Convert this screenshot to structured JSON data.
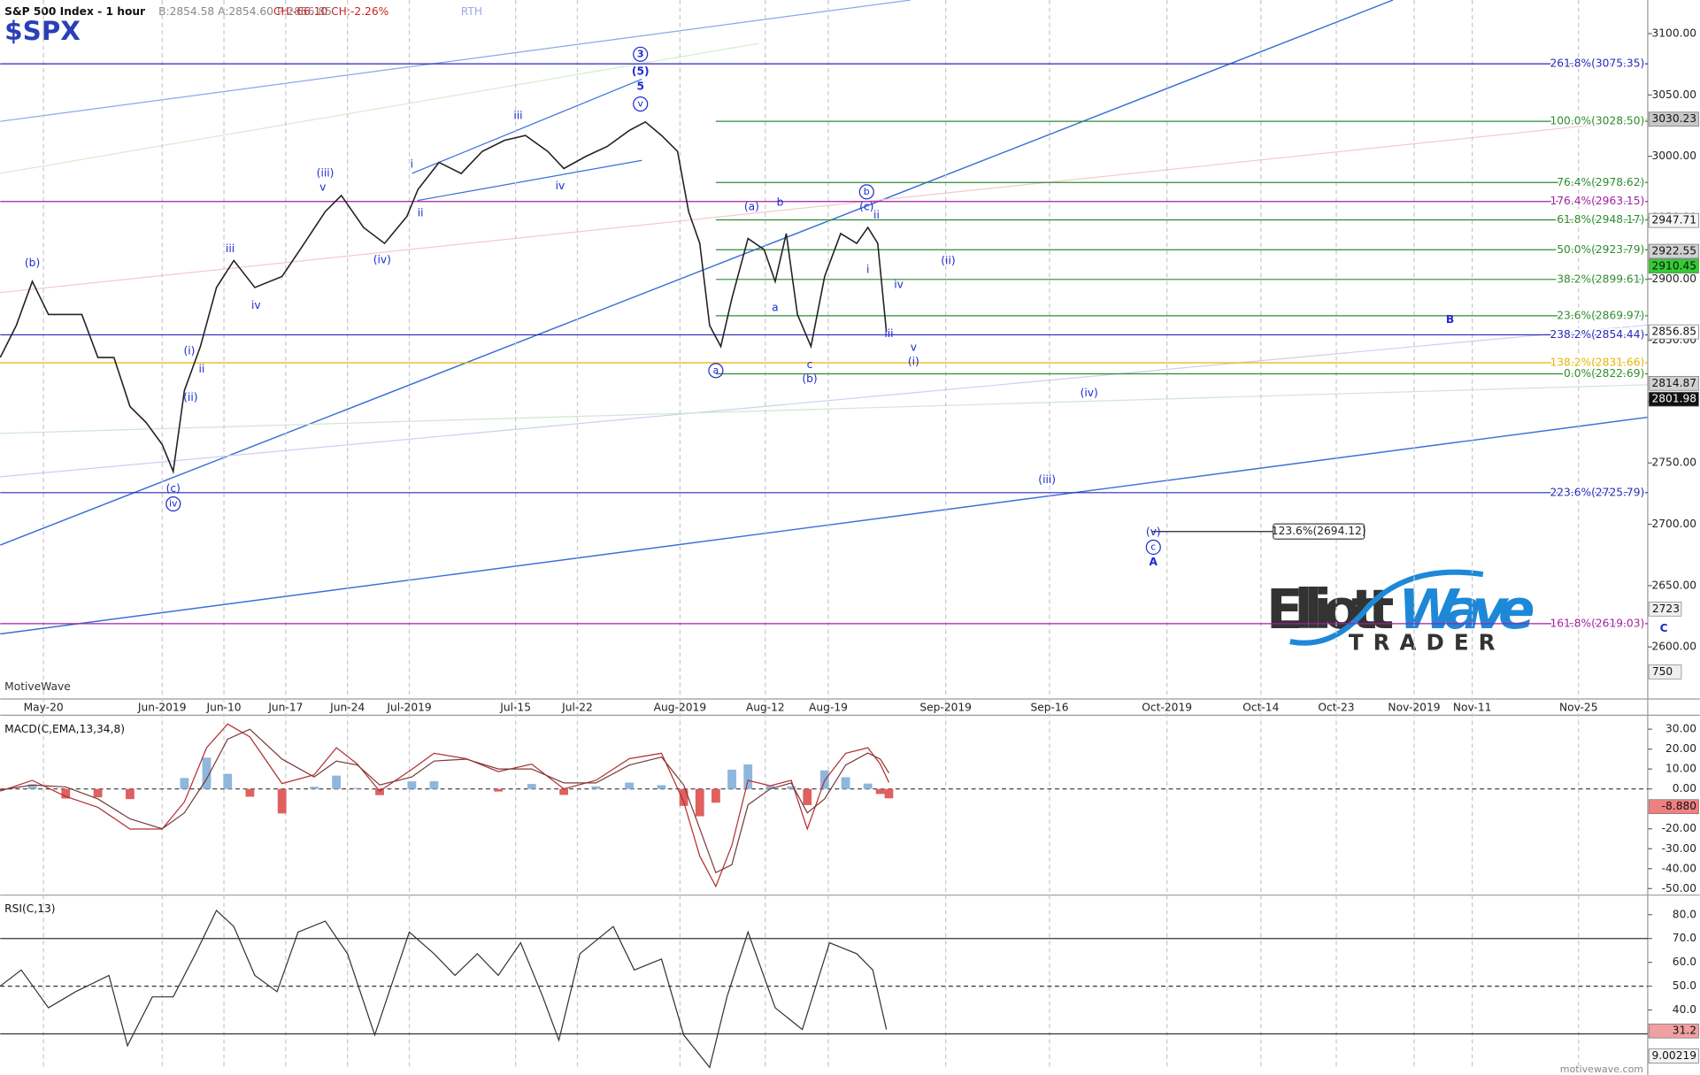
{
  "header": {
    "instrument": "S&P 500 Index - 1 hour",
    "quote": "B:2854.58 A:2854.60 P:2856.85",
    "change": "CH:-66.10 CH:-2.26%",
    "session": "RTH",
    "symbol": "$SPX"
  },
  "logo": {
    "name1": "Elliott",
    "name2": "Wave",
    "tagline": "TRADER"
  },
  "watermark": "MotiveWave",
  "footer": "motivewave.com",
  "footer_tag": "9.00219",
  "chart_data": [
    {
      "type": "line",
      "color": "#222222",
      "x": [
        -3.5,
        -2.2,
        -0.9,
        0.4,
        1.8,
        3.1,
        4.4,
        5.7,
        7.0,
        8.3,
        9.6,
        10.5,
        11.4,
        12.7,
        14.0,
        15.4,
        17.1,
        19.3,
        21.1,
        22.8,
        24.1,
        25.9,
        27.6,
        29.4,
        30.3,
        32.0,
        33.8,
        35.5,
        37.3,
        39.0,
        40.8,
        42.1,
        43.9,
        45.6,
        47.4,
        48.7,
        50.0,
        51.3,
        52.2,
        53.1,
        53.9,
        54.8,
        55.7,
        57.0,
        58.3,
        59.2,
        60.1,
        61.0,
        62.1,
        63.2,
        64.5,
        65.8,
        66.7,
        67.5,
        68.2
      ],
      "values": [
        2836,
        2862,
        2898,
        2871,
        2871,
        2871,
        2836,
        2836,
        2796,
        2783,
        2765,
        2743,
        2809,
        2845,
        2893,
        2915,
        2893,
        2902,
        2929,
        2955,
        2968,
        2942,
        2929,
        2951,
        2973,
        2995,
        2986,
        3004,
        3013,
        3017,
        3004,
        2990,
        3000,
        3008,
        3021,
        3028,
        3017,
        3004,
        2955,
        2929,
        2862,
        2845,
        2884,
        2933,
        2924,
        2898,
        2937,
        2871,
        2845,
        2902,
        2937,
        2929,
        2942,
        2929,
        2857
      ],
      "xlim": [
        -3.5,
        129.8
      ],
      "xticks": [
        {
          "value": 0,
          "label": "May-20"
        },
        {
          "value": 9.6,
          "label": "Jun-2019"
        },
        {
          "value": 14.6,
          "label": "Jun-10"
        },
        {
          "value": 19.6,
          "label": "Jun-17"
        },
        {
          "value": 24.6,
          "label": "Jun-24"
        },
        {
          "value": 29.6,
          "label": "Jul-2019"
        },
        {
          "value": 38.2,
          "label": "Jul-15"
        },
        {
          "value": 43.2,
          "label": "Jul-22"
        },
        {
          "value": 51.5,
          "label": "Aug-2019"
        },
        {
          "value": 58.4,
          "label": "Aug-12"
        },
        {
          "value": 63.5,
          "label": "Aug-19"
        },
        {
          "value": 73,
          "label": "Sep-2019"
        },
        {
          "value": 81.4,
          "label": "Sep-16"
        },
        {
          "value": 90.9,
          "label": "Oct-2019"
        },
        {
          "value": 98.5,
          "label": "Oct-14"
        },
        {
          "value": 104.6,
          "label": "Oct-23"
        },
        {
          "value": 110.9,
          "label": "Nov-2019"
        },
        {
          "value": 115.6,
          "label": "Nov-11"
        },
        {
          "value": 124.2,
          "label": "Nov-25"
        }
      ],
      "ylim": [
        2557.6,
        3127.4
      ],
      "yticks": [
        {
          "value": 2600,
          "label": "2600.00"
        },
        {
          "value": 2650,
          "label": "2650.00"
        },
        {
          "value": 2700,
          "label": "2700.00"
        },
        {
          "value": 2750,
          "label": "2750.00"
        },
        {
          "value": 2800,
          "label": "2800.00"
        },
        {
          "value": 2850,
          "label": "2850.00"
        },
        {
          "value": 2900,
          "label": "2900.00"
        },
        {
          "value": 2950,
          "label": "2950.00"
        },
        {
          "value": 3000,
          "label": "3000.00"
        },
        {
          "value": 3050,
          "label": "3050.00"
        },
        {
          "value": 3100,
          "label": "3100.00"
        }
      ],
      "levels": [
        {
          "label": "261.8%(3075.35)",
          "value": 3075.35,
          "color": "#2828b8"
        },
        {
          "label": "100.0%(3028.50)",
          "value": 3028.5,
          "color": "#2e8b2e",
          "x_start": 54.4
        },
        {
          "label": "76.4%(2978.62)",
          "value": 2978.62,
          "color": "#2e8b2e",
          "x_start": 54.4
        },
        {
          "label": "176.4%(2963.15)",
          "value": 2963.15,
          "color": "#a020a0"
        },
        {
          "label": "61.8%(2948.17)",
          "value": 2948.17,
          "color": "#2e8b2e",
          "x_start": 54.4
        },
        {
          "label": "50.0%(2923.79)",
          "value": 2923.79,
          "color": "#2e8b2e",
          "x_start": 54.4
        },
        {
          "label": "38.2%(2899.61)",
          "value": 2899.61,
          "color": "#2e8b2e",
          "x_start": 54.4
        },
        {
          "label": "23.6%(2869.97)",
          "value": 2869.97,
          "color": "#2e8b2e",
          "x_start": 54.4
        },
        {
          "label": "238.2%(2854.44)",
          "value": 2854.44,
          "color": "#2828b8"
        },
        {
          "label": "138.2%(2831.66)",
          "value": 2831.66,
          "color": "#e8b400"
        },
        {
          "label": "0.0%(2822.69)",
          "value": 2822.69,
          "color": "#2e8b2e",
          "x_start": 54.4
        },
        {
          "label": "223.6%(2725.79)",
          "value": 2725.79,
          "color": "#2828b8"
        },
        {
          "label": "161.8%(2619.03)",
          "value": 2619.03,
          "color": "#a020a0"
        },
        {
          "label": "123.6%(2694.12)",
          "value": 2694.12,
          "color": "#222222",
          "x_start": 89.7,
          "x_end": 99.5,
          "boxed": true
        }
      ],
      "price_tags": [
        {
          "value": 3030.23,
          "color": "#c8c8c8"
        },
        {
          "value": 2947.71,
          "color": "#f4f4f4"
        },
        {
          "value": 2922.55,
          "color": "#d0d0d0"
        },
        {
          "value": 2910.45,
          "color": "#33cc33"
        },
        {
          "value": 2856.85,
          "color": "#ffffff"
        },
        {
          "value": 2814.87,
          "color": "#d0d0d0"
        },
        {
          "value": 2801.98,
          "color": "#111111",
          "text_color": "#ffffff"
        }
      ],
      "volume_labels": [
        "2723",
        "750"
      ],
      "annotations": [
        {
          "text": "3",
          "x": 48.3,
          "y": 3083.2,
          "circled": true,
          "bold": true
        },
        {
          "text": "(5)",
          "x": 48.3,
          "y": 3069.1,
          "bold": true
        },
        {
          "text": "5",
          "x": 48.3,
          "y": 3056.7,
          "bold": true
        },
        {
          "text": "v",
          "x": 48.3,
          "y": 3042.6,
          "circled": true
        },
        {
          "text": "iii",
          "x": 38.4,
          "y": 3032.9
        },
        {
          "text": "(iii)",
          "x": 22.8,
          "y": 2986.0
        },
        {
          "text": "v",
          "x": 22.6,
          "y": 2974.6
        },
        {
          "text": "i",
          "x": 29.8,
          "y": 2993.1
        },
        {
          "text": "ii",
          "x": 30.5,
          "y": 2953.4
        },
        {
          "text": "iv",
          "x": 41.8,
          "y": 2975.4
        },
        {
          "text": "(iv)",
          "x": 27.4,
          "y": 2915.4
        },
        {
          "text": "iii",
          "x": 15.1,
          "y": 2924.2
        },
        {
          "text": "iv",
          "x": 17.2,
          "y": 2878.3
        },
        {
          "text": "(b)",
          "x": -0.9,
          "y": 2912.7
        },
        {
          "text": "(i)",
          "x": 11.8,
          "y": 2841.2
        },
        {
          "text": "ii",
          "x": 12.8,
          "y": 2826.1
        },
        {
          "text": "(ii)",
          "x": 11.9,
          "y": 2803.2
        },
        {
          "text": "(c)",
          "x": 10.5,
          "y": 2729.0
        },
        {
          "text": "iv",
          "x": 10.5,
          "y": 2716.6,
          "circled": true
        },
        {
          "text": "(a)",
          "x": 57.3,
          "y": 2958.7
        },
        {
          "text": "b",
          "x": 59.6,
          "y": 2962.2
        },
        {
          "text": "a",
          "x": 59.2,
          "y": 2876.5
        },
        {
          "text": "c",
          "x": 62.0,
          "y": 2829.7
        },
        {
          "text": "(b)",
          "x": 62.0,
          "y": 2818.2
        },
        {
          "text": "a",
          "x": 54.4,
          "y": 2825.3,
          "circled": true
        },
        {
          "text": "b",
          "x": 66.6,
          "y": 2971.0,
          "circled": true
        },
        {
          "text": "(c)",
          "x": 66.6,
          "y": 2958.7
        },
        {
          "text": "ii",
          "x": 67.4,
          "y": 2951.6
        },
        {
          "text": "i",
          "x": 66.7,
          "y": 2907.4
        },
        {
          "text": "iv",
          "x": 69.2,
          "y": 2895.1
        },
        {
          "text": "iii",
          "x": 68.4,
          "y": 2855.3
        },
        {
          "text": "v",
          "x": 70.4,
          "y": 2843.8
        },
        {
          "text": "(i)",
          "x": 70.4,
          "y": 2832.3
        },
        {
          "text": "(ii)",
          "x": 73.2,
          "y": 2914.5
        },
        {
          "text": "(iv)",
          "x": 84.6,
          "y": 2806.7
        },
        {
          "text": "(iii)",
          "x": 81.2,
          "y": 2736.0
        },
        {
          "text": "(v)",
          "x": 89.8,
          "y": 2693.6
        },
        {
          "text": "c",
          "x": 89.8,
          "y": 2681.3,
          "circled": true
        },
        {
          "text": "A",
          "x": 89.8,
          "y": 2668.9,
          "bold": true
        },
        {
          "text": "B",
          "x": 113.8,
          "y": 2866.8,
          "bold": true
        },
        {
          "text": "C",
          "x": 131.1,
          "y": 2615.0,
          "bold": true
        }
      ]
    },
    {
      "type": "macd",
      "title": "MACD(C,EMA,13,34,8)",
      "x": [
        -3.5,
        -0.9,
        1.8,
        4.4,
        7.0,
        9.6,
        11.4,
        13.2,
        14.9,
        16.7,
        19.3,
        21.9,
        23.7,
        25.4,
        27.2,
        29.8,
        31.6,
        34.2,
        36.8,
        39.5,
        42.1,
        44.7,
        47.4,
        50.0,
        51.8,
        53.1,
        54.4,
        55.7,
        57.0,
        58.8,
        60.5,
        61.8,
        63.2,
        64.9,
        66.7,
        67.7,
        68.4
      ],
      "series": [
        {
          "color": "#b03030",
          "values": [
            -1.1,
            4.3,
            -3.8,
            -9.2,
            -20.1,
            -20.1,
            -6.5,
            20.7,
            32.6,
            26.1,
            2.7,
            7.1,
            20.7,
            12.5,
            -1.1,
            9.8,
            17.9,
            15.2,
            8.7,
            12.5,
            0,
            4.3,
            15.2,
            17.9,
            -6.5,
            -33.7,
            -48.9,
            -28.3,
            4.3,
            1.6,
            4.3,
            -20.1,
            4.3,
            17.9,
            20.7,
            12.5,
            3.3
          ]
        },
        {
          "color": "#7a3a3a",
          "values": [
            -0.5,
            2,
            1,
            -5,
            -15,
            -20,
            -12,
            5,
            25,
            30,
            15,
            6,
            14,
            12,
            2,
            6,
            14,
            15,
            10,
            10,
            3,
            3,
            12,
            16,
            2,
            -20,
            -42,
            -38,
            -8,
            0,
            3,
            -12,
            -5,
            12,
            18,
            15,
            8
          ]
        }
      ],
      "histogram": {
        "pos_color": "#8fb6dc",
        "neg_color": "#e06060",
        "values": [
          -0.6,
          2.3,
          -4.8,
          -4.2,
          -5.1,
          -0.1,
          5.5,
          15.7,
          7.6,
          -3.9,
          -12.3,
          1.1,
          6.7,
          0.5,
          -3.1,
          3.8,
          3.9,
          0.2,
          -1.3,
          2.5,
          -3,
          1.3,
          3.2,
          1.9,
          -8.5,
          -13.7,
          -6.9,
          9.7,
          12.3,
          1.6,
          1.3,
          -8.1,
          9.3,
          5.9,
          2.7,
          -2.5,
          -4.7
        ]
      },
      "ylim": [
        -51.1,
        37.0
      ],
      "yticks": [
        {
          "value": 30,
          "label": "30.00"
        },
        {
          "value": 20,
          "label": "20.00"
        },
        {
          "value": 10,
          "label": "10.00"
        },
        {
          "value": 0,
          "label": "0.00"
        },
        {
          "value": -20,
          "label": "-20.00"
        },
        {
          "value": -30,
          "label": "-30.00"
        },
        {
          "value": -40,
          "label": "-40.00"
        },
        {
          "value": -50,
          "label": "-50.00"
        }
      ],
      "tag": {
        "value": -8.88,
        "label": "-8.880"
      }
    },
    {
      "type": "rsi",
      "title": "RSI(C,13)",
      "color": "#333333",
      "x": [
        -3.5,
        -1.8,
        0.4,
        2.6,
        5.3,
        6.8,
        8.8,
        10.5,
        12.3,
        14.0,
        15.4,
        17.1,
        18.9,
        20.6,
        22.8,
        24.6,
        26.8,
        29.6,
        31.6,
        33.3,
        35.1,
        36.8,
        38.6,
        40.4,
        41.7,
        43.4,
        46.1,
        47.8,
        50.0,
        51.8,
        53.9,
        55.3,
        57.0,
        59.2,
        61.4,
        63.6,
        65.8,
        67.1,
        68.2
      ],
      "values": [
        50,
        56.8,
        40.9,
        47.7,
        54.5,
        25,
        45.5,
        45.5,
        63.6,
        81.8,
        75,
        54.5,
        47.7,
        72.7,
        77.3,
        63.6,
        29.5,
        72.7,
        63.6,
        54.5,
        63.6,
        54.5,
        68.2,
        45.5,
        27.3,
        63.6,
        75,
        56.8,
        61.4,
        29.5,
        15.9,
        45.5,
        72.7,
        40.9,
        31.8,
        68.2,
        63.6,
        56.8,
        31.8
      ],
      "ylim": [
        15.9,
        87.3
      ],
      "yticks": [
        {
          "value": 80,
          "label": "80.0"
        },
        {
          "value": 70,
          "label": "70.0"
        },
        {
          "value": 60,
          "label": "60.0"
        },
        {
          "value": 50,
          "label": "50.0"
        },
        {
          "value": 40,
          "label": "40.0"
        }
      ],
      "levels": [
        70,
        50,
        30
      ],
      "tag": 31.2
    }
  ]
}
